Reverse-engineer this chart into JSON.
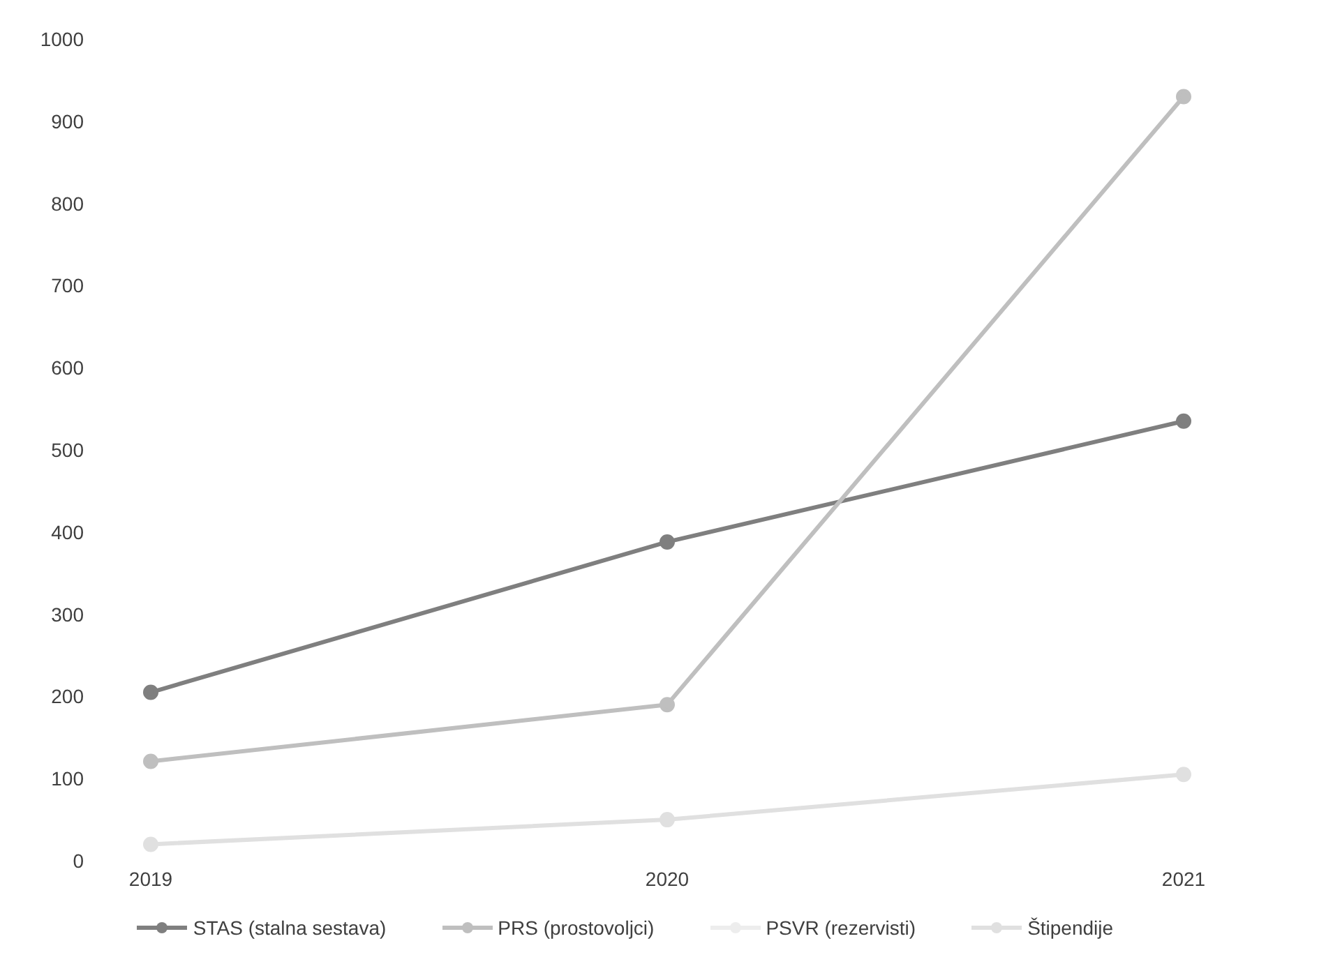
{
  "chart_data": {
    "type": "line",
    "categories": [
      "2019",
      "2020",
      "2021"
    ],
    "series": [
      {
        "name": "STAS (stalna sestava)",
        "color": "#7f7f7f",
        "values": [
          205,
          388,
          535
        ]
      },
      {
        "name": "PRS (prostovoljci)",
        "color": "#bfbfbf",
        "values": [
          121,
          190,
          930
        ]
      },
      {
        "name": "PSVR (rezervisti)",
        "color": "#ededed",
        "values": [
          null,
          null,
          null
        ]
      },
      {
        "name": "Štipendije",
        "color": "#e0e0e0",
        "values": [
          20,
          50,
          105
        ]
      }
    ],
    "ylim": [
      0,
      1000
    ],
    "yticks": [
      0,
      100,
      200,
      300,
      400,
      500,
      600,
      700,
      800,
      900,
      1000
    ],
    "legend": "bottom",
    "marker": "circle",
    "line_style": "solid"
  }
}
